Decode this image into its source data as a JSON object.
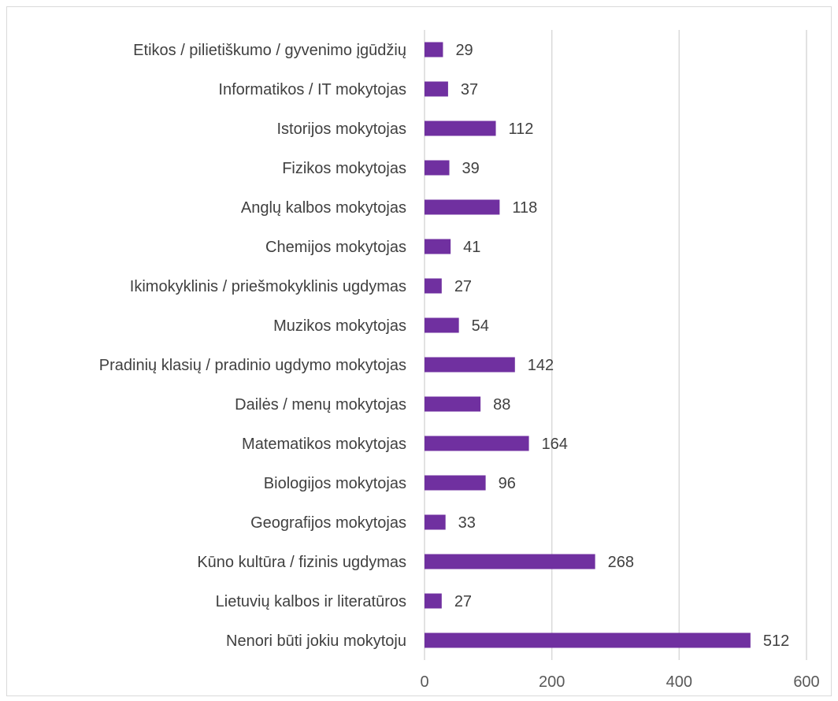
{
  "chart_data": {
    "type": "bar",
    "orientation": "horizontal",
    "categories": [
      "Etikos / pilietiškumo / gyvenimo įgūdžių",
      "Informatikos / IT mokytojas",
      "Istorijos mokytojas",
      "Fizikos mokytojas",
      "Anglų kalbos mokytojas",
      "Chemijos mokytojas",
      "Ikimokyklinis / priešmokyklinis ugdymas",
      "Muzikos mokytojas",
      "Pradinių klasių / pradinio ugdymo mokytojas",
      "Dailės / menų mokytojas",
      "Matematikos mokytojas",
      "Biologijos mokytojas",
      "Geografijos mokytojas",
      "Kūno kultūra / fizinis ugdymas",
      "Lietuvių kalbos ir literatūros",
      "Nenori būti jokiu mokytoju"
    ],
    "values": [
      29,
      37,
      112,
      39,
      118,
      41,
      27,
      54,
      142,
      88,
      164,
      96,
      33,
      268,
      27,
      512
    ],
    "xlim": [
      0,
      600
    ],
    "xticks": [
      0,
      200,
      400,
      600
    ],
    "bar_color": "#7030a0",
    "grid": true,
    "data_labels": true,
    "title": "",
    "xlabel": "",
    "ylabel": ""
  }
}
